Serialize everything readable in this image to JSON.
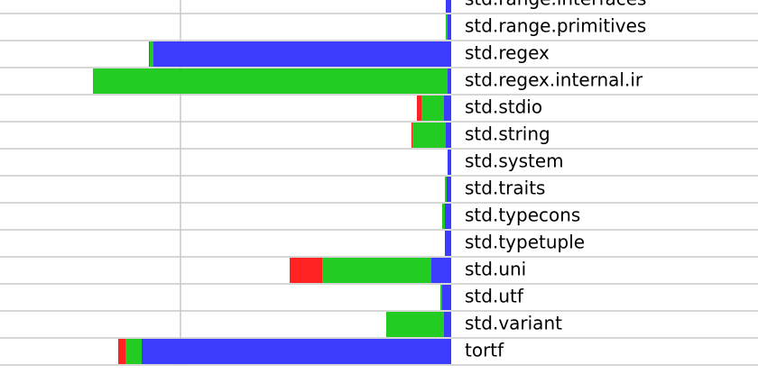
{
  "chart_data": {
    "type": "hbar-stacked-left",
    "categories": [
      "std.range.interfaces",
      "std.range.primitives",
      "std.regex",
      "std.regex.internal.ir",
      "std.stdio",
      "std.string",
      "std.system",
      "std.traits",
      "std.typecons",
      "std.typetuple",
      "std.uni",
      "std.utf",
      "std.variant",
      "tortf"
    ],
    "series": [
      {
        "color": "#3c3cff",
        "values": [
          6,
          4,
          330,
          4,
          8,
          6,
          4,
          5,
          7,
          7,
          22,
          10,
          8,
          343
        ]
      },
      {
        "color": "#22cc22",
        "values": [
          0,
          2,
          4,
          393,
          25,
          37,
          0,
          2,
          3,
          0,
          121,
          2,
          64,
          18
        ]
      },
      {
        "color": "#ff2222",
        "values": [
          0,
          0,
          1,
          0,
          5,
          1,
          0,
          0,
          0,
          0,
          36,
          0,
          0,
          8
        ]
      }
    ],
    "xlim": [
      0,
      500
    ],
    "xticks": [
      300
    ],
    "grid": true
  }
}
